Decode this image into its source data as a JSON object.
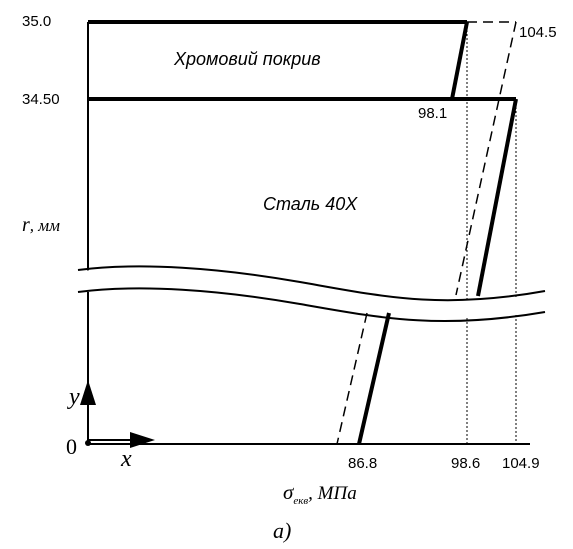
{
  "y_ticks": {
    "top": "35.0",
    "interface": "34.50",
    "origin": "0"
  },
  "stress_labels": {
    "top_right": "104.5",
    "interface_left": "98.1",
    "bottom_1": "86.8",
    "bottom_2": "98.6",
    "bottom_3": "104.9"
  },
  "regions": {
    "coating": "Хромовий покрив",
    "steel": "Сталь 40Х"
  },
  "axes": {
    "y_axis_label_var": "r",
    "y_axis_label_unit": ", мм",
    "x_axis_label_sigma": "σ",
    "x_axis_label_sub": "екв",
    "x_axis_label_unit": ", МПа",
    "x_arrow": "x",
    "y_arrow": "y"
  },
  "caption": "а)"
}
